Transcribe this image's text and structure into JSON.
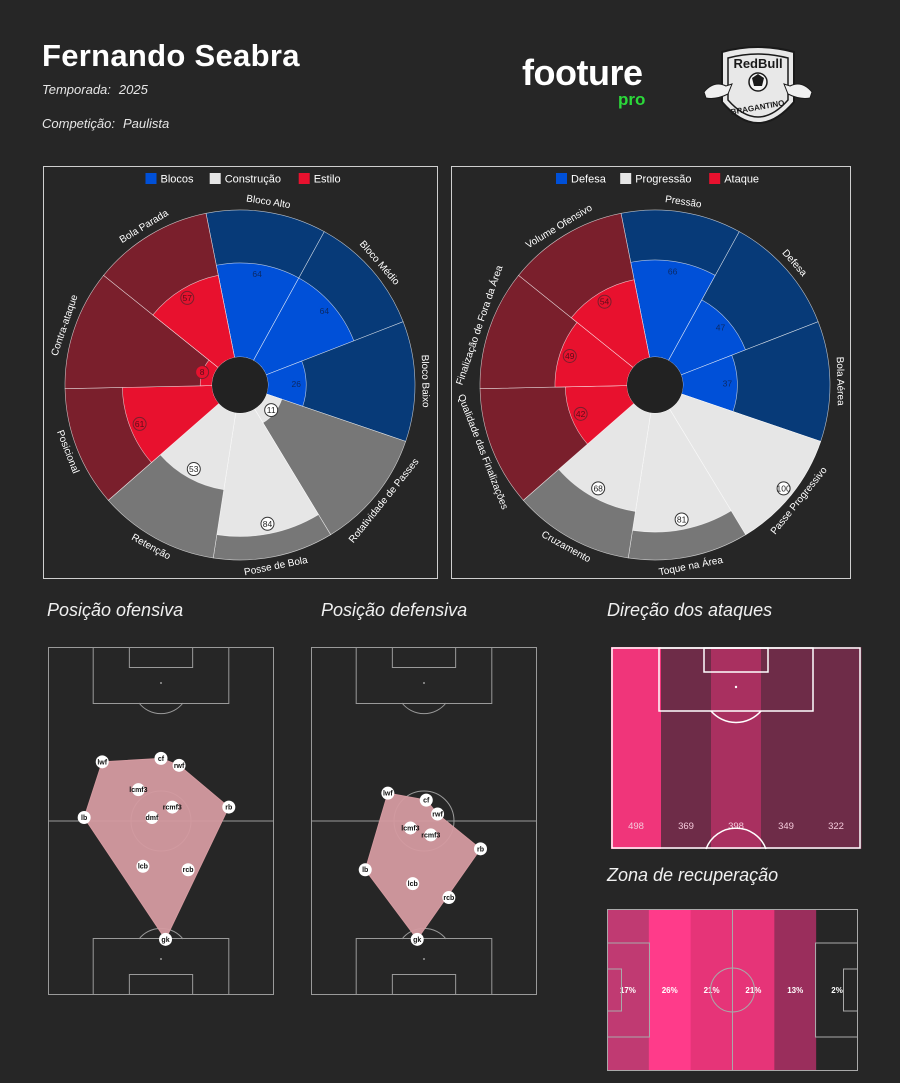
{
  "header": {
    "player_name": "Fernando Seabra",
    "season_label": "Temporada:",
    "season_value": "2025",
    "competition_label": "Competição:",
    "competition_value": "Paulista",
    "brand_name": "footure",
    "brand_sub": "pro",
    "club_logo_text": [
      "RedBull",
      "BRAGANTINO"
    ]
  },
  "colors": {
    "background": "#262626",
    "blue": "#0050d8",
    "blue_dark": "#073a78",
    "red": "#e8112e",
    "red_dark": "#7a1f2c",
    "light": "#e6e6e6",
    "grey": "#777777",
    "shape": "#d49aa0",
    "brand_green": "#2bd93a"
  },
  "section_titles": {
    "offensive": "Posição ofensiva",
    "defensive": "Posição defensiva",
    "attack_direction": "Direção dos ataques",
    "recovery": "Zona de recuperação"
  },
  "chart_data": [
    {
      "type": "polar-bar",
      "legend": [
        "Blocos",
        "Construção",
        "Estilo"
      ],
      "legend_colors": [
        "#0050d8",
        "#e6e6e6",
        "#e8112e"
      ],
      "categories": [
        "Bloco Alto",
        "Bloco Médio",
        "Bloco Baixo",
        "Rotatividade de Passes",
        "Posse de Bola",
        "Retenção",
        "Posicional",
        "Contra-ataque",
        "Bola Parada"
      ],
      "groups": [
        "Blocos",
        "Blocos",
        "Blocos",
        "Construção",
        "Construção",
        "Construção",
        "Estilo",
        "Estilo",
        "Estilo"
      ],
      "values": [
        64,
        64,
        26,
        11,
        84,
        53,
        61,
        8,
        57
      ],
      "range": [
        0,
        100
      ]
    },
    {
      "type": "polar-bar",
      "legend": [
        "Defesa",
        "Progressão",
        "Ataque"
      ],
      "legend_colors": [
        "#0050d8",
        "#e6e6e6",
        "#e8112e"
      ],
      "categories": [
        "Pressão",
        "Defesa",
        "Bola Aérea",
        "Passe Progressivo",
        "Toque na Área",
        "Cruzamento",
        "Qualidade das Finalizações",
        "Finalização de Fora da Área",
        "Volume Ofensivo"
      ],
      "groups": [
        "Defesa",
        "Defesa",
        "Defesa",
        "Progressão",
        "Progressão",
        "Progressão",
        "Ataque",
        "Ataque",
        "Ataque"
      ],
      "values": [
        66,
        47,
        37,
        100,
        81,
        68,
        42,
        49,
        54
      ],
      "range": [
        0,
        100
      ]
    },
    {
      "type": "scatter",
      "title": "Posição ofensiva",
      "points": [
        {
          "label": "lwf",
          "x": 24,
          "y": 67
        },
        {
          "label": "cf",
          "x": 50,
          "y": 68
        },
        {
          "label": "rwf",
          "x": 58,
          "y": 66
        },
        {
          "label": "lcmf3",
          "x": 40,
          "y": 59
        },
        {
          "label": "rcmf3",
          "x": 55,
          "y": 54
        },
        {
          "label": "dmf",
          "x": 46,
          "y": 51
        },
        {
          "label": "lb",
          "x": 16,
          "y": 51
        },
        {
          "label": "rb",
          "x": 80,
          "y": 54
        },
        {
          "label": "lcb",
          "x": 42,
          "y": 37
        },
        {
          "label": "rcb",
          "x": 62,
          "y": 36
        },
        {
          "label": "gk",
          "x": 52,
          "y": 16
        }
      ],
      "hull": [
        "lwf",
        "cf",
        "rwf",
        "rb",
        "gk",
        "lb"
      ]
    },
    {
      "type": "scatter",
      "title": "Posição defensiva",
      "points": [
        {
          "label": "lwf",
          "x": 34,
          "y": 58
        },
        {
          "label": "cf",
          "x": 51,
          "y": 56
        },
        {
          "label": "rwf",
          "x": 56,
          "y": 52
        },
        {
          "label": "lcmf3",
          "x": 44,
          "y": 48
        },
        {
          "label": "rcmf3",
          "x": 53,
          "y": 46
        },
        {
          "label": "lb",
          "x": 24,
          "y": 36
        },
        {
          "label": "rb",
          "x": 75,
          "y": 42
        },
        {
          "label": "lcb",
          "x": 45,
          "y": 32
        },
        {
          "label": "rcb",
          "x": 61,
          "y": 28
        },
        {
          "label": "gk",
          "x": 47,
          "y": 16
        }
      ],
      "hull": [
        "lwf",
        "cf",
        "rwf",
        "rb",
        "gk",
        "lb"
      ]
    },
    {
      "type": "heatmap",
      "title": "Direção dos ataques",
      "orientation": "vertical-lanes",
      "values": [
        498,
        369,
        398,
        349,
        322
      ],
      "colors": [
        "#f0357a",
        "#6e2c48",
        "#a93060",
        "#6e2c48",
        "#6e2c48"
      ]
    },
    {
      "type": "heatmap",
      "title": "Zona de recuperação",
      "orientation": "horizontal-thirds",
      "values": [
        "17%",
        "26%",
        "21%",
        "21%",
        "13%",
        "2%"
      ],
      "colors": [
        "#c03a72",
        "#ff3b8a",
        "#e63478",
        "#e63478",
        "#9a2e5c",
        "#262626"
      ]
    }
  ]
}
